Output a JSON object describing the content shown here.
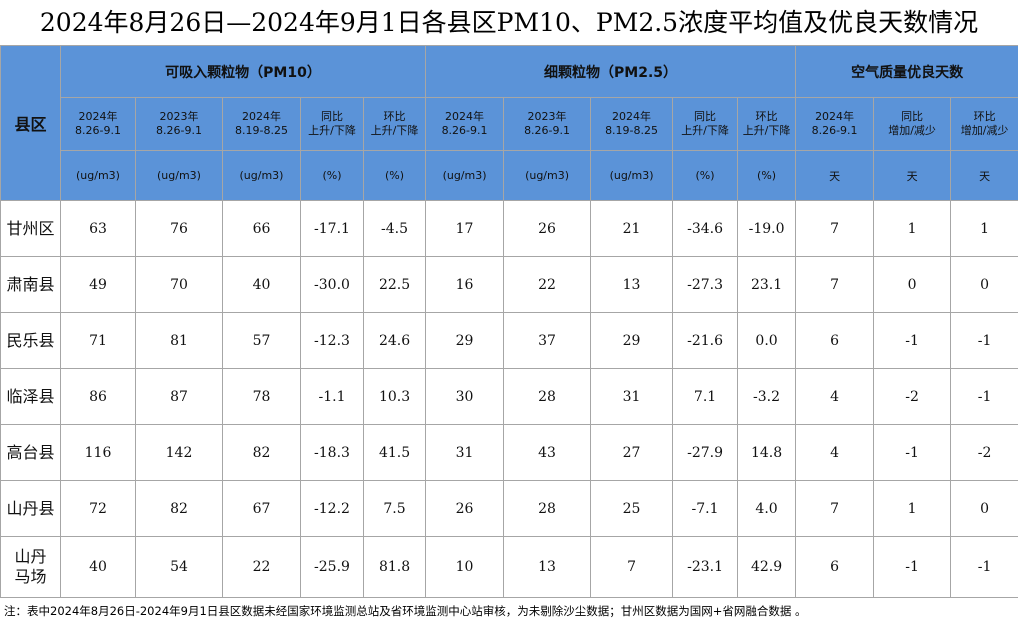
{
  "title": "2024年8月26日—2024年9月1日各县区PM10、PM2.5浓度平均值及优良天数情况",
  "table": {
    "region_header": "县区",
    "groups": [
      "可吸入颗粒物（PM10）",
      "细颗粒物（PM2.5）",
      "空气质量优良天数"
    ],
    "subheaders": [
      [
        "2024年",
        "8.26-9.1"
      ],
      [
        "2023年",
        "8.26-9.1"
      ],
      [
        "2024年",
        "8.19-8.25"
      ],
      [
        "同比",
        "上升/下降"
      ],
      [
        "环比",
        "上升/下降"
      ],
      [
        "2024年",
        "8.26-9.1"
      ],
      [
        "2023年",
        "8.26-9.1"
      ],
      [
        "2024年",
        "8.19-8.25"
      ],
      [
        "同比",
        "上升/下降"
      ],
      [
        "环比",
        "上升/下降"
      ],
      [
        "2024年",
        "8.26-9.1"
      ],
      [
        "同比",
        "增加/减少"
      ],
      [
        "环比",
        "增加/减少"
      ]
    ],
    "units": [
      "(ug/m3)",
      "(ug/m3)",
      "(ug/m3)",
      "(%)",
      "(%)",
      "(ug/m3)",
      "(ug/m3)",
      "(ug/m3)",
      "(%)",
      "(%)",
      "天",
      "天",
      "天"
    ],
    "rows": [
      {
        "name": [
          "甘州区"
        ],
        "values": [
          "63",
          "76",
          "66",
          "-17.1",
          "-4.5",
          "17",
          "26",
          "21",
          "-34.6",
          "-19.0",
          "7",
          "1",
          "1"
        ]
      },
      {
        "name": [
          "肃南县"
        ],
        "values": [
          "49",
          "70",
          "40",
          "-30.0",
          "22.5",
          "16",
          "22",
          "13",
          "-27.3",
          "23.1",
          "7",
          "0",
          "0"
        ]
      },
      {
        "name": [
          "民乐县"
        ],
        "values": [
          "71",
          "81",
          "57",
          "-12.3",
          "24.6",
          "29",
          "37",
          "29",
          "-21.6",
          "0.0",
          "6",
          "-1",
          "-1"
        ]
      },
      {
        "name": [
          "临泽县"
        ],
        "values": [
          "86",
          "87",
          "78",
          "-1.1",
          "10.3",
          "30",
          "28",
          "31",
          "7.1",
          "-3.2",
          "4",
          "-2",
          "-1"
        ]
      },
      {
        "name": [
          "高台县"
        ],
        "values": [
          "116",
          "142",
          "82",
          "-18.3",
          "41.5",
          "31",
          "43",
          "27",
          "-27.9",
          "14.8",
          "4",
          "-1",
          "-2"
        ]
      },
      {
        "name": [
          "山丹县"
        ],
        "values": [
          "72",
          "82",
          "67",
          "-12.2",
          "7.5",
          "26",
          "28",
          "25",
          "-7.1",
          "4.0",
          "7",
          "1",
          "0"
        ]
      },
      {
        "name": [
          "山丹",
          "马场"
        ],
        "values": [
          "40",
          "54",
          "22",
          "-25.9",
          "81.8",
          "10",
          "13",
          "7",
          "-23.1",
          "42.9",
          "6",
          "-1",
          "-1"
        ]
      }
    ]
  },
  "note": "注：表中2024年8月26日-2024年9月1日县区数据未经国家环境监测总站及省环境监测中心站审核，为未剔除沙尘数据；甘州区数据为国网+省网融合数据 。"
}
